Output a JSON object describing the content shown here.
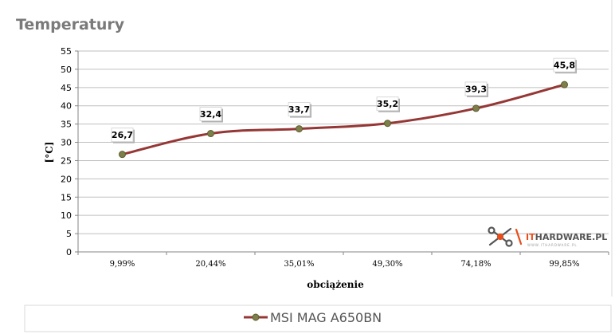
{
  "chart_data": {
    "type": "line",
    "title": "Temperatury",
    "xlabel": "obciążenie",
    "ylabel": "[°C]",
    "categories": [
      "9,99%",
      "20,44%",
      "35,01%",
      "49,30%",
      "74,18%",
      "99,85%"
    ],
    "series": [
      {
        "name": "MSI MAG A650BN",
        "values": [
          26.7,
          32.4,
          33.7,
          35.2,
          39.3,
          45.8
        ],
        "labels": [
          "26,7",
          "32,4",
          "33,7",
          "35,2",
          "39,3",
          "45,8"
        ],
        "color": "#953735",
        "marker_color": "#7f7f4a"
      }
    ],
    "ylim": [
      0,
      55
    ],
    "yticks": [
      "0",
      "5",
      "10",
      "15",
      "20",
      "25",
      "30",
      "35",
      "40",
      "45",
      "50",
      "55"
    ],
    "grid": true,
    "legend_position": "bottom"
  },
  "watermark": {
    "text_it": "IT",
    "text_main": "HARDWARE.PL",
    "text_sub": "WWW.ITHARDWARE.PL",
    "accent_color": "#e84e1b"
  }
}
